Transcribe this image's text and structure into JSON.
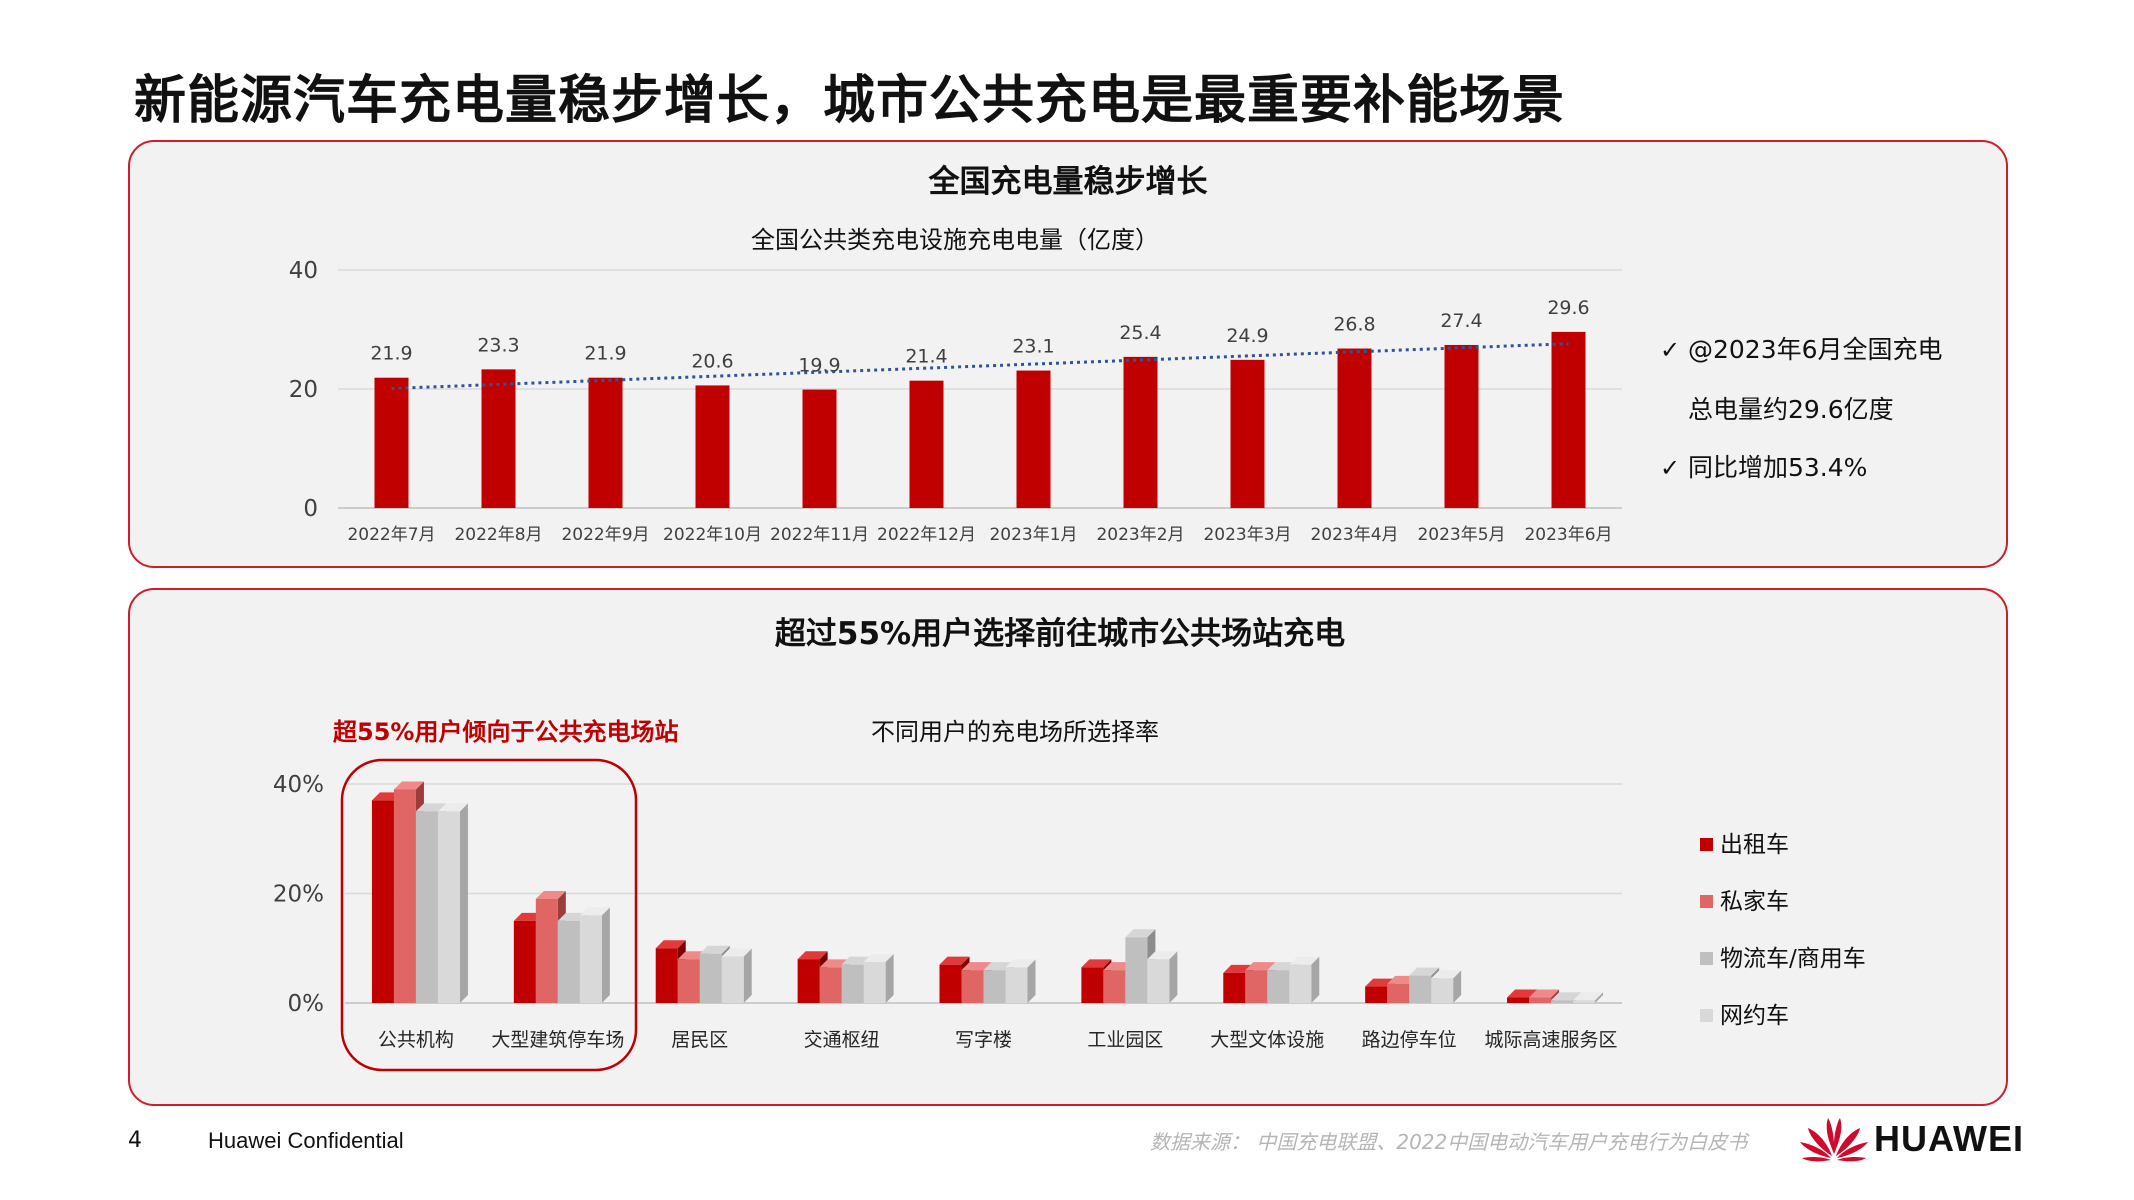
{
  "page": {
    "title": "新能源汽车充电量稳步增长，城市公共充电是最重要补能场景",
    "page_number": "4",
    "confidential": "Huawei Confidential",
    "source": "数据来源： 中国充电联盟、2022中国电动汽车用户充电行为白皮书",
    "logo_text": "HUAWEI"
  },
  "colors": {
    "accent": "#c00000",
    "panel_border": "#cc1e2b",
    "panel_bg": "#f2f2f2",
    "trend": "#2f5597",
    "series": [
      "#c00000",
      "#e06666",
      "#bfbfbf",
      "#d9d9d9"
    ]
  },
  "panel1": {
    "heading": "全国充电量稳步增长",
    "notes": [
      "@2023年6月全国充电",
      "总电量约29.6亿度",
      "同比增加53.4%"
    ],
    "check_mark": "✓"
  },
  "panel2": {
    "heading": "超过55%用户选择前往城市公共场站充电",
    "callout": "超55%用户倾向于公共充电场站"
  },
  "chart_data": [
    {
      "type": "bar",
      "title": "全国公共类充电设施充电电量（亿度）",
      "categories": [
        "2022年7月",
        "2022年8月",
        "2022年9月",
        "2022年10月",
        "2022年11月",
        "2022年12月",
        "2023年1月",
        "2023年2月",
        "2023年3月",
        "2023年4月",
        "2023年5月",
        "2023年6月"
      ],
      "values": [
        21.9,
        23.3,
        21.9,
        20.6,
        19.9,
        21.4,
        23.1,
        25.4,
        24.9,
        26.8,
        27.4,
        29.6
      ],
      "value_labels": [
        "21.9",
        "23.3",
        "21.9",
        "20.6",
        "19.9",
        "21.4",
        "23.1",
        "25.4",
        "24.9",
        "26.8",
        "27.4",
        "29.6"
      ],
      "ylim": [
        0,
        40
      ],
      "yticks": [
        "0",
        "20",
        "40"
      ],
      "trendline": "linear (dotted)",
      "grid": true
    },
    {
      "type": "bar",
      "title": "不同用户的充电场所选择率",
      "categories": [
        "公共机构",
        "大型建筑停车场",
        "居民区",
        "交通枢纽",
        "写字楼",
        "工业园区",
        "大型文体设施",
        "路边停车位",
        "城际高速服务区"
      ],
      "series": [
        {
          "name": "出租车",
          "values": [
            0.37,
            0.15,
            0.1,
            0.08,
            0.07,
            0.065,
            0.055,
            0.03,
            0.01
          ]
        },
        {
          "name": "私家车",
          "values": [
            0.39,
            0.19,
            0.08,
            0.065,
            0.06,
            0.06,
            0.06,
            0.035,
            0.01
          ]
        },
        {
          "name": "物流车/商用车",
          "values": [
            0.35,
            0.15,
            0.09,
            0.07,
            0.06,
            0.12,
            0.06,
            0.05,
            0.005
          ]
        },
        {
          "name": "网约车",
          "values": [
            0.35,
            0.16,
            0.085,
            0.075,
            0.065,
            0.08,
            0.07,
            0.045,
            0.005
          ]
        }
      ],
      "ylim": [
        0,
        0.4
      ],
      "yticks": [
        "0%",
        "20%",
        "40%"
      ],
      "legend": "right",
      "grid": true,
      "highlight": [
        "公共机构",
        "大型建筑停车场"
      ]
    }
  ]
}
